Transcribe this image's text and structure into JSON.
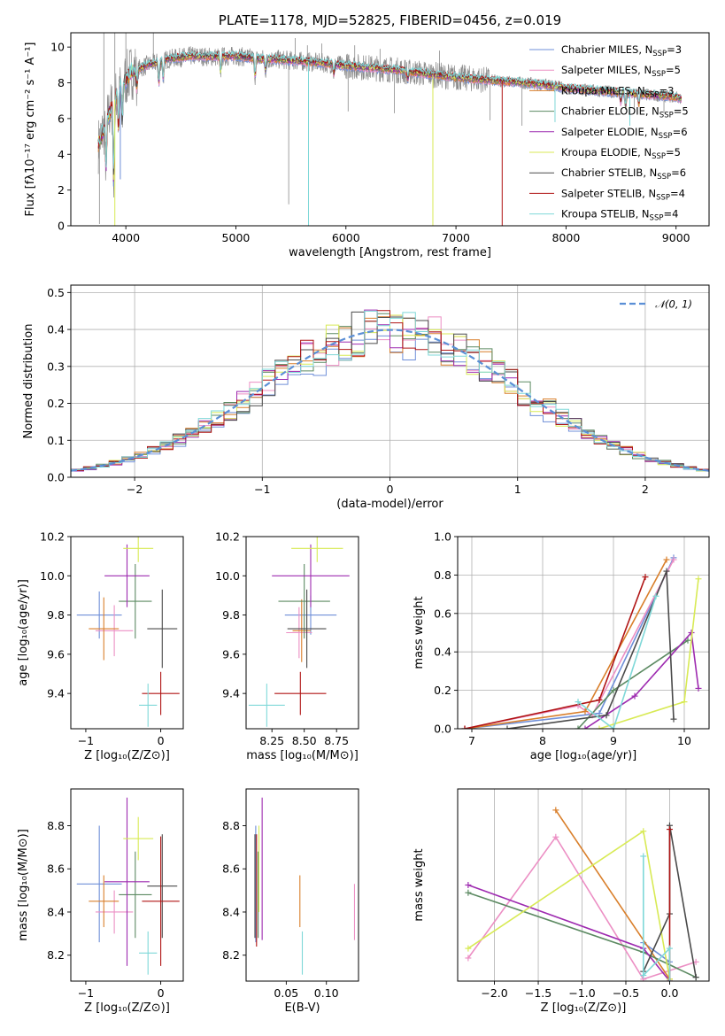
{
  "colors": {
    "Chabrier MILES": "#6f8fd8",
    "Salpeter MILES": "#ec8fc4",
    "Kroupa MILES": "#d97f2b",
    "Chabrier ELODIE": "#5c8a62",
    "Salpeter ELODIE": "#9e2bb0",
    "Kroupa ELODIE": "#d8ea55",
    "Chabrier STELIB": "#4a4a4a",
    "Salpeter STELIB": "#b01414",
    "Kroupa STELIB": "#7fd8d8",
    "data": "#8a8a8a",
    "normal": "#5b8fd6"
  },
  "chart_data": [
    {
      "id": "spectrum",
      "type": "line",
      "title": "PLATE=1178, MJD=52825, FIBERID=0456, z=0.019",
      "xlabel": "wavelength [Angstrom, rest frame]",
      "ylabel": "Flux [fλ10⁻¹⁷ erg cm⁻² s⁻¹ A⁻¹]",
      "xlim": [
        3500,
        9300
      ],
      "ylim": [
        0,
        10.8
      ],
      "xticks": [
        4000,
        5000,
        6000,
        7000,
        8000,
        9000
      ],
      "yticks": [
        0,
        2,
        4,
        6,
        8,
        10
      ],
      "legend_position": "upper-right",
      "legend": [
        {
          "name": "Chabrier MILES",
          "label": "Chabrier MILES, N",
          "sub": "SSP",
          "tail": "=3"
        },
        {
          "name": "Salpeter MILES",
          "label": "Salpeter MILES, N",
          "sub": "SSP",
          "tail": "=5"
        },
        {
          "name": "Kroupa MILES",
          "label": "Kroupa MILES, N",
          "sub": "SSP",
          "tail": "=3"
        },
        {
          "name": "Chabrier ELODIE",
          "label": "Chabrier ELODIE, N",
          "sub": "SSP",
          "tail": "=5"
        },
        {
          "name": "Salpeter ELODIE",
          "label": "Salpeter ELODIE, N",
          "sub": "SSP",
          "tail": "=6"
        },
        {
          "name": "Kroupa ELODIE",
          "label": "Kroupa ELODIE, N",
          "sub": "SSP",
          "tail": "=5"
        },
        {
          "name": "Chabrier STELIB",
          "label": "Chabrier STELIB, N",
          "sub": "SSP",
          "tail": "=6"
        },
        {
          "name": "Salpeter STELIB",
          "label": "Salpeter STELIB, N",
          "sub": "SSP",
          "tail": "=4"
        },
        {
          "name": "Kroupa STELIB",
          "label": "Kroupa STELIB, N",
          "sub": "SSP",
          "tail": "=4"
        }
      ],
      "data_wavelength_range": [
        3750,
        9050
      ],
      "continuum": [
        [
          3750,
          4.5
        ],
        [
          3850,
          6.3
        ],
        [
          3950,
          7.8
        ],
        [
          4050,
          8.6
        ],
        [
          4200,
          9.0
        ],
        [
          4400,
          9.35
        ],
        [
          4600,
          9.5
        ],
        [
          4800,
          9.45
        ],
        [
          5000,
          9.5
        ],
        [
          5200,
          9.35
        ],
        [
          5400,
          9.3
        ],
        [
          5600,
          9.2
        ],
        [
          5800,
          9.1
        ],
        [
          6000,
          8.95
        ],
        [
          6200,
          8.85
        ],
        [
          6400,
          8.75
        ],
        [
          6600,
          8.6
        ],
        [
          6800,
          8.45
        ],
        [
          7000,
          8.3
        ],
        [
          7200,
          8.2
        ],
        [
          7400,
          8.1
        ],
        [
          7600,
          8.0
        ],
        [
          7800,
          7.9
        ],
        [
          8000,
          7.7
        ],
        [
          8200,
          7.6
        ],
        [
          8400,
          7.5
        ],
        [
          8600,
          7.4
        ],
        [
          8800,
          7.3
        ],
        [
          9000,
          7.2
        ],
        [
          9050,
          7.1
        ]
      ],
      "absorption_lines": [
        [
          3820,
          3.2
        ],
        [
          3890,
          2.5
        ],
        [
          3933,
          5.5
        ],
        [
          3968,
          5.8
        ],
        [
          4101,
          7.8
        ],
        [
          4300,
          8.0
        ],
        [
          4340,
          8.2
        ],
        [
          4861,
          8.6
        ],
        [
          5175,
          8.4
        ],
        [
          5270,
          8.7
        ],
        [
          5890,
          8.5
        ],
        [
          6563,
          8.2
        ],
        [
          8498,
          6.9
        ],
        [
          8542,
          6.7
        ],
        [
          8662,
          6.8
        ]
      ],
      "data_spikes": [
        [
          3760,
          0.1
        ],
        [
          5480,
          1.2
        ],
        [
          6020,
          6.4
        ],
        [
          6440,
          6.3
        ],
        [
          7310,
          5.9
        ],
        [
          7600,
          5.6
        ],
        [
          8620,
          6.6
        ],
        [
          8890,
          6.3
        ],
        [
          3800,
          11.0
        ],
        [
          3900,
          11.0
        ],
        [
          4000,
          11.0
        ],
        [
          4250,
          10.8
        ],
        [
          5540,
          10.5
        ],
        [
          5650,
          10.1
        ],
        [
          5780,
          10.2
        ],
        [
          6080,
          10.1
        ],
        [
          6310,
          9.9
        ],
        [
          6850,
          9.8
        ]
      ],
      "model_spikes": [
        {
          "name": "Kroupa STELIB",
          "x": 5660,
          "y": 0.0
        },
        {
          "name": "Kroupa ELODIE",
          "x": 6790,
          "y": 0.0
        },
        {
          "name": "Salpeter STELIB",
          "x": 7420,
          "y": 0.0
        },
        {
          "name": "Kroupa STELIB",
          "x": 7900,
          "y": 5.8
        },
        {
          "name": "Kroupa STELIB",
          "x": 8580,
          "y": 5.6
        },
        {
          "name": "Chabrier MILES",
          "x": 3950,
          "y": 2.6
        },
        {
          "name": "Kroupa ELODIE",
          "x": 3900,
          "y": 0.0
        }
      ]
    },
    {
      "id": "residuals",
      "type": "histogram",
      "xlabel": "(data-model)/error",
      "ylabel": "Normed distribution",
      "xlim": [
        -2.5,
        2.5
      ],
      "ylim": [
        0,
        0.52
      ],
      "xticks": [
        -2,
        -1,
        0,
        1,
        2
      ],
      "yticks": [
        0.0,
        0.1,
        0.2,
        0.3,
        0.4,
        0.5
      ],
      "grid": true,
      "legend_position": "upper-right",
      "reference": {
        "label": "𝒩(0, 1)",
        "mean": 0,
        "sigma": 1
      },
      "bin_width": 0.1,
      "x_start": -2.5,
      "series": [
        {
          "name": "Chabrier MILES",
          "values": [
            0.02,
            0.025,
            0.03,
            0.035,
            0.04,
            0.045,
            0.05,
            0.055,
            0.06,
            0.07,
            0.08,
            0.095,
            0.11,
            0.125,
            0.145,
            0.165,
            0.19,
            0.21,
            0.23,
            0.26,
            0.28,
            0.31,
            0.33,
            0.25,
            0.35,
            0.36,
            0.38,
            0.37,
            0.39,
            0.41,
            0.38,
            0.4,
            0.42,
            0.4,
            0.44,
            0.39,
            0.38,
            0.37,
            0.36,
            0.35,
            0.33,
            0.31,
            0.29,
            0.27,
            0.25,
            0.22,
            0.2,
            0.18,
            0.16,
            0.14
          ]
        }
      ]
    },
    {
      "id": "age-vs-Z",
      "type": "errorbar",
      "xlabel": "Z [log₁₀(Z/Z⊙)]",
      "ylabel": "age  [log₁₀(age/yr)]",
      "xlim": [
        -1.2,
        0.3
      ],
      "ylim": [
        9.22,
        10.2
      ],
      "xticks": [
        -1,
        0
      ],
      "yticks": [
        9.4,
        9.6,
        9.8,
        10.0,
        10.2
      ],
      "points": [
        {
          "name": "Chabrier MILES",
          "x": -0.82,
          "xerr": 0.3,
          "y": 9.8,
          "yerr": 0.12
        },
        {
          "name": "Salpeter MILES",
          "x": -0.62,
          "xerr": 0.25,
          "y": 9.72,
          "yerr": 0.13
        },
        {
          "name": "Kroupa MILES",
          "x": -0.76,
          "xerr": 0.2,
          "y": 9.73,
          "yerr": 0.16
        },
        {
          "name": "Chabrier ELODIE",
          "x": -0.34,
          "xerr": 0.22,
          "y": 9.87,
          "yerr": 0.19
        },
        {
          "name": "Salpeter ELODIE",
          "x": -0.45,
          "xerr": 0.3,
          "y": 10.0,
          "yerr": 0.16
        },
        {
          "name": "Kroupa ELODIE",
          "x": -0.3,
          "xerr": 0.2,
          "y": 10.14,
          "yerr": 0.07
        },
        {
          "name": "Chabrier STELIB",
          "x": 0.02,
          "xerr": 0.2,
          "y": 9.73,
          "yerr": 0.2
        },
        {
          "name": "Salpeter STELIB",
          "x": 0.0,
          "xerr": 0.25,
          "y": 9.4,
          "yerr": 0.11
        },
        {
          "name": "Kroupa STELIB",
          "x": -0.17,
          "xerr": 0.12,
          "y": 9.34,
          "yerr": 0.11
        }
      ]
    },
    {
      "id": "age-vs-mass",
      "type": "errorbar",
      "xlabel": "mass [log₁₀(M/M⊙)]",
      "ylabel": "",
      "xlim": [
        8.05,
        8.92
      ],
      "ylim": [
        9.22,
        10.2
      ],
      "xticks": [
        8.25,
        8.5,
        8.75
      ],
      "yticks": [
        9.4,
        9.6,
        9.8,
        10.0,
        10.2
      ],
      "points": [
        {
          "name": "Chabrier MILES",
          "x": 8.55,
          "xerr": 0.2,
          "y": 9.8,
          "yerr": 0.1
        },
        {
          "name": "Salpeter MILES",
          "x": 8.46,
          "xerr": 0.1,
          "y": 9.71,
          "yerr": 0.13
        },
        {
          "name": "Kroupa MILES",
          "x": 8.48,
          "xerr": 0.07,
          "y": 9.72,
          "yerr": 0.16
        },
        {
          "name": "Chabrier ELODIE",
          "x": 8.5,
          "xerr": 0.2,
          "y": 9.87,
          "yerr": 0.19
        },
        {
          "name": "Salpeter ELODIE",
          "x": 8.55,
          "xerr": 0.3,
          "y": 10.0,
          "yerr": 0.16
        },
        {
          "name": "Kroupa ELODIE",
          "x": 8.6,
          "xerr": 0.2,
          "y": 10.14,
          "yerr": 0.07
        },
        {
          "name": "Chabrier STELIB",
          "x": 8.52,
          "xerr": 0.15,
          "y": 9.73,
          "yerr": 0.2
        },
        {
          "name": "Salpeter STELIB",
          "x": 8.47,
          "xerr": 0.2,
          "y": 9.4,
          "yerr": 0.11
        },
        {
          "name": "Kroupa STELIB",
          "x": 8.21,
          "xerr": 0.14,
          "y": 9.34,
          "yerr": 0.11
        }
      ]
    },
    {
      "id": "massweight-vs-age",
      "type": "line",
      "xlabel": "age  [log₁₀(age/yr)]",
      "ylabel": "mass weight",
      "xlim": [
        6.8,
        10.35
      ],
      "ylim": [
        0,
        1.0
      ],
      "xticks": [
        7,
        8,
        9,
        10
      ],
      "yticks": [
        0.0,
        0.2,
        0.4,
        0.6,
        0.8,
        1.0
      ],
      "grid": true,
      "series": [
        {
          "name": "Chabrier MILES",
          "x": [
            6.9,
            8.8,
            9.85
          ],
          "y": [
            0.0,
            0.08,
            0.89
          ]
        },
        {
          "name": "Salpeter MILES",
          "x": [
            6.9,
            8.5,
            8.7,
            9.85
          ],
          "y": [
            0.0,
            0.12,
            0.07,
            0.88
          ]
        },
        {
          "name": "Kroupa MILES",
          "x": [
            6.9,
            8.6,
            9.75
          ],
          "y": [
            0.0,
            0.09,
            0.88
          ]
        },
        {
          "name": "Chabrier ELODIE",
          "x": [
            8.5,
            9.0,
            10.05
          ],
          "y": [
            0.0,
            0.2,
            0.46
          ]
        },
        {
          "name": "Salpeter ELODIE",
          "x": [
            8.6,
            9.3,
            10.1,
            10.2
          ],
          "y": [
            0.0,
            0.17,
            0.5,
            0.21
          ]
        },
        {
          "name": "Kroupa ELODIE",
          "x": [
            8.8,
            10.0,
            10.2
          ],
          "y": [
            0.0,
            0.14,
            0.78
          ]
        },
        {
          "name": "Chabrier STELIB",
          "x": [
            7.5,
            8.9,
            9.75,
            9.85
          ],
          "y": [
            0.0,
            0.07,
            0.82,
            0.05
          ]
        },
        {
          "name": "Salpeter STELIB",
          "x": [
            6.9,
            8.8,
            9.45
          ],
          "y": [
            0.0,
            0.15,
            0.79
          ]
        },
        {
          "name": "Kroupa STELIB",
          "x": [
            8.5,
            9.0,
            9.6
          ],
          "y": [
            0.14,
            0.0,
            0.69
          ]
        }
      ]
    },
    {
      "id": "mass-vs-Z",
      "type": "errorbar",
      "xlabel": "Z [log₁₀(Z/Z⊙)]",
      "ylabel": "mass [log₁₀(M/M⊙)]",
      "xlim": [
        -1.2,
        0.3
      ],
      "ylim": [
        8.08,
        8.97
      ],
      "xticks": [
        -1,
        0
      ],
      "yticks": [
        8.2,
        8.4,
        8.6,
        8.8
      ],
      "points": [
        {
          "name": "Chabrier MILES",
          "x": -0.82,
          "xerr": 0.3,
          "y": 8.53,
          "yerr": 0.27
        },
        {
          "name": "Salpeter MILES",
          "x": -0.62,
          "xerr": 0.25,
          "y": 8.4,
          "yerr": 0.1
        },
        {
          "name": "Kroupa MILES",
          "x": -0.76,
          "xerr": 0.2,
          "y": 8.45,
          "yerr": 0.12
        },
        {
          "name": "Chabrier ELODIE",
          "x": -0.34,
          "xerr": 0.22,
          "y": 8.48,
          "yerr": 0.2
        },
        {
          "name": "Salpeter ELODIE",
          "x": -0.45,
          "xerr": 0.3,
          "y": 8.54,
          "yerr": 0.39
        },
        {
          "name": "Kroupa ELODIE",
          "x": -0.3,
          "xerr": 0.2,
          "y": 8.74,
          "yerr": 0.1
        },
        {
          "name": "Chabrier STELIB",
          "x": 0.02,
          "xerr": 0.2,
          "y": 8.52,
          "yerr": 0.24
        },
        {
          "name": "Salpeter STELIB",
          "x": 0.0,
          "xerr": 0.25,
          "y": 8.45,
          "yerr": 0.3
        },
        {
          "name": "Kroupa STELIB",
          "x": -0.17,
          "xerr": 0.12,
          "y": 8.21,
          "yerr": 0.1
        }
      ]
    },
    {
      "id": "mass-vs-ebv",
      "type": "errorbar",
      "xlabel": "E(B-V)",
      "ylabel": "",
      "xlim": [
        0.0,
        0.14
      ],
      "ylim": [
        8.08,
        8.97
      ],
      "xticks": [
        0.05,
        0.1
      ],
      "yticks": [
        8.2,
        8.4,
        8.6,
        8.8
      ],
      "points": [
        {
          "name": "Chabrier MILES",
          "x": 0.012,
          "xerr": 0.0,
          "y": 8.53,
          "yerr": 0.27
        },
        {
          "name": "Salpeter MILES",
          "x": 0.135,
          "xerr": 0.0,
          "y": 8.4,
          "yerr": 0.13
        },
        {
          "name": "Kroupa MILES",
          "x": 0.067,
          "xerr": 0.0,
          "y": 8.45,
          "yerr": 0.12
        },
        {
          "name": "Chabrier ELODIE",
          "x": 0.015,
          "xerr": 0.0,
          "y": 8.48,
          "yerr": 0.2
        },
        {
          "name": "Salpeter ELODIE",
          "x": 0.02,
          "xerr": 0.0,
          "y": 8.6,
          "yerr": 0.33
        },
        {
          "name": "Kroupa ELODIE",
          "x": 0.016,
          "xerr": 0.0,
          "y": 8.6,
          "yerr": 0.2
        },
        {
          "name": "Chabrier STELIB",
          "x": 0.011,
          "xerr": 0.0,
          "y": 8.52,
          "yerr": 0.24
        },
        {
          "name": "Salpeter STELIB",
          "x": 0.013,
          "xerr": 0.0,
          "y": 8.5,
          "yerr": 0.26
        },
        {
          "name": "Kroupa STELIB",
          "x": 0.07,
          "xerr": 0.0,
          "y": 8.21,
          "yerr": 0.1
        }
      ]
    },
    {
      "id": "massweight-vs-Z",
      "type": "line",
      "xlabel": "Z [log₁₀(Z/Z⊙)]",
      "ylabel": "mass weight",
      "xlim": [
        -2.42,
        0.45
      ],
      "ylim": [
        0,
        1.0
      ],
      "xticks": [
        -2.0,
        -1.5,
        -1.0,
        -0.5,
        0.0
      ],
      "grid": true,
      "series": [
        {
          "name": "Chabrier MILES",
          "x": [
            -0.3,
            0.0
          ],
          "y": [
            0.2,
            0.1
          ]
        },
        {
          "name": "Salpeter MILES",
          "x": [
            -2.3,
            -1.3,
            -0.3,
            0.3
          ],
          "y": [
            0.12,
            0.75,
            0.01,
            0.1
          ]
        },
        {
          "name": "Kroupa MILES",
          "x": [
            -1.3,
            0.0
          ],
          "y": [
            0.89,
            0.01
          ]
        },
        {
          "name": "Chabrier ELODIE",
          "x": [
            -2.3,
            -0.3,
            0.3
          ],
          "y": [
            0.46,
            0.15,
            0.02
          ]
        },
        {
          "name": "Salpeter ELODIE",
          "x": [
            -2.3,
            -0.3,
            0.0
          ],
          "y": [
            0.5,
            0.17,
            0.0
          ]
        },
        {
          "name": "Kroupa ELODIE",
          "x": [
            -2.3,
            -0.3,
            0.0
          ],
          "y": [
            0.17,
            0.78,
            0.01
          ]
        },
        {
          "name": "Chabrier STELIB",
          "x": [
            -0.3,
            0.0,
            0.0,
            0.3
          ],
          "y": [
            0.05,
            0.35,
            0.81,
            0.02
          ]
        },
        {
          "name": "Salpeter STELIB",
          "x": [
            0.0,
            0.0
          ],
          "y": [
            0.0,
            0.79
          ]
        },
        {
          "name": "Kroupa STELIB",
          "x": [
            -0.3,
            -0.3,
            0.0,
            0.0
          ],
          "y": [
            0.65,
            0.03,
            0.17,
            0.0
          ]
        }
      ]
    }
  ]
}
